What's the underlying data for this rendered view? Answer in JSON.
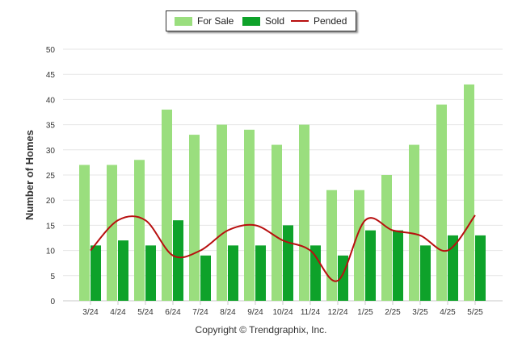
{
  "chart_data": {
    "type": "bar",
    "categories": [
      "3/24",
      "4/24",
      "5/24",
      "6/24",
      "7/24",
      "8/24",
      "9/24",
      "10/24",
      "11/24",
      "12/24",
      "1/25",
      "2/25",
      "3/25",
      "4/25",
      "5/25"
    ],
    "series": [
      {
        "name": "For Sale",
        "type": "bar",
        "color": "#9ade7e",
        "values": [
          27,
          27,
          28,
          38,
          33,
          35,
          34,
          31,
          35,
          22,
          22,
          25,
          31,
          39,
          43
        ]
      },
      {
        "name": "Sold",
        "type": "bar",
        "color": "#0ea22a",
        "values": [
          11,
          12,
          11,
          16,
          9,
          11,
          11,
          15,
          11,
          9,
          14,
          14,
          11,
          13,
          13
        ]
      },
      {
        "name": "Pended",
        "type": "line",
        "color": "#b80f0f",
        "values": [
          10,
          16,
          16,
          9,
          10,
          14,
          15,
          12,
          10,
          4,
          16,
          14,
          13,
          10,
          17
        ]
      }
    ],
    "ylabel": "Number of Homes",
    "ylim": [
      0,
      50
    ],
    "yticks": [
      0,
      5,
      10,
      15,
      20,
      25,
      30,
      35,
      40,
      45,
      50
    ],
    "grid": true,
    "legend_position": "top-center"
  },
  "footer": {
    "copyright": "Copyright © Trendgraphix, Inc."
  }
}
